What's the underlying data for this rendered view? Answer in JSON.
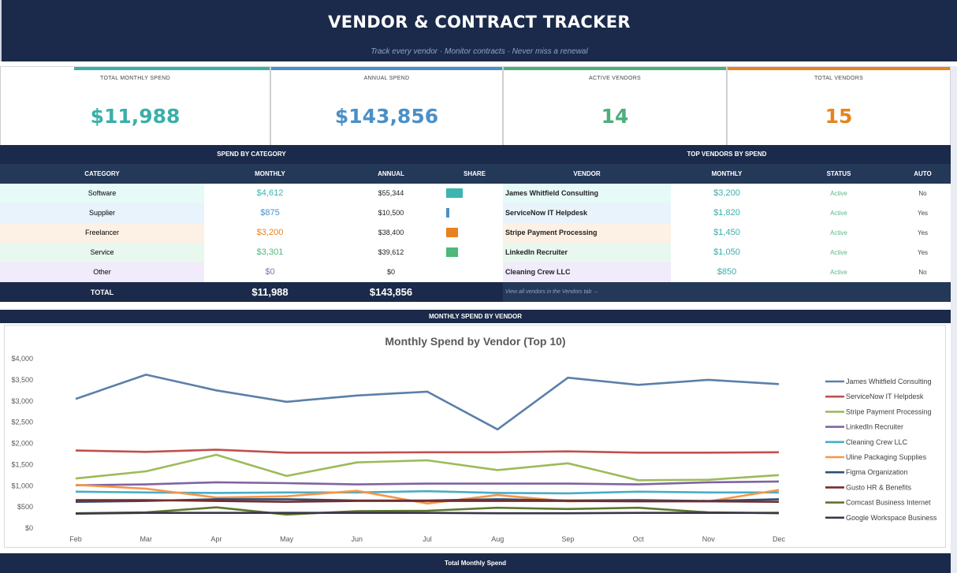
{
  "header": {
    "title": "VENDOR & CONTRACT TRACKER",
    "subtitle": "Track every vendor · Monitor contracts · Never miss a renewal"
  },
  "kpis": [
    {
      "label": "TOTAL MONTHLY SPEND",
      "value": "$11,988",
      "color": "#3aafa9"
    },
    {
      "label": "ANNUAL SPEND",
      "value": "$143,856",
      "color": "#4a90c8"
    },
    {
      "label": "ACTIVE VENDORS",
      "value": "14",
      "color": "#4caf7a"
    },
    {
      "label": "TOTAL VENDORS",
      "value": "15",
      "color": "#e8821e"
    }
  ],
  "category_panel": {
    "title": "SPEND BY CATEGORY",
    "columns": [
      "CATEGORY",
      "MONTHLY",
      "ANNUAL",
      "SHARE"
    ],
    "rows": [
      {
        "category": "Software",
        "monthly": "$4,612",
        "annual": "$55,344",
        "share": 0.385,
        "color": "#3ab5b0",
        "bg": "#e6faf8"
      },
      {
        "category": "Supplier",
        "monthly": "$875",
        "annual": "$10,500",
        "share": 0.073,
        "color": "#4a90c8",
        "bg": "#e8f3fb"
      },
      {
        "category": "Freelancer",
        "monthly": "$3,200",
        "annual": "$38,400",
        "share": 0.267,
        "color": "#e8821e",
        "bg": "#fdf0e4"
      },
      {
        "category": "Service",
        "monthly": "$3,301",
        "annual": "$39,612",
        "share": 0.275,
        "color": "#4cb87a",
        "bg": "#e9f8ef"
      },
      {
        "category": "Other",
        "monthly": "$0",
        "annual": "$0",
        "share": 0,
        "color": "#8a6fb8",
        "bg": "#f1ebfb"
      }
    ],
    "total_label": "TOTAL",
    "total_monthly": "$11,988",
    "total_annual": "$143,856"
  },
  "vendor_panel": {
    "title": "TOP VENDORS BY SPEND",
    "columns": [
      "VENDOR",
      "MONTHLY",
      "STATUS",
      "AUTO"
    ],
    "rows": [
      {
        "vendor": "James Whitfield Consulting",
        "monthly": "$3,200",
        "status": "Active",
        "auto": "No",
        "bg": "#e6faf8"
      },
      {
        "vendor": "ServiceNow IT Helpdesk",
        "monthly": "$1,820",
        "status": "Active",
        "auto": "Yes",
        "bg": "#e8f3fb"
      },
      {
        "vendor": "Stripe Payment Processing",
        "monthly": "$1,450",
        "status": "Active",
        "auto": "Yes",
        "bg": "#fdf0e4"
      },
      {
        "vendor": "LinkedIn Recruiter",
        "monthly": "$1,050",
        "status": "Active",
        "auto": "Yes",
        "bg": "#e9f8ef"
      },
      {
        "vendor": "Cleaning Crew LLC",
        "monthly": "$850",
        "status": "Active",
        "auto": "No",
        "bg": "#f1ebfb"
      }
    ],
    "link_text": "View all vendors in the Vendors tab →"
  },
  "chart_section_title": "MONTHLY SPEND BY VENDOR",
  "footer_title": "Total Monthly Spend",
  "chart_data": {
    "type": "line",
    "title": "Monthly Spend by Vendor (Top 10)",
    "xlabel": "",
    "ylabel": "",
    "x": [
      "Feb",
      "Mar",
      "Apr",
      "May",
      "Jun",
      "Jul",
      "Aug",
      "Sep",
      "Oct",
      "Nov",
      "Dec"
    ],
    "ylim": [
      0,
      4000
    ],
    "yticks": [
      "$0",
      "$500",
      "$1,000",
      "$1,500",
      "$2,000",
      "$2,500",
      "$3,000",
      "$3,500",
      "$4,000"
    ],
    "grid": false,
    "legend": "right",
    "series": [
      {
        "name": "James Whitfield Consulting",
        "color": "#5b80a8",
        "values": [
          3050,
          3620,
          3250,
          2980,
          3130,
          3220,
          2330,
          3550,
          3380,
          3500,
          3400
        ]
      },
      {
        "name": "ServiceNow IT Helpdesk",
        "color": "#c0504d",
        "values": [
          1830,
          1800,
          1850,
          1780,
          1780,
          1790,
          1790,
          1810,
          1780,
          1780,
          1790
        ]
      },
      {
        "name": "Stripe Payment Processing",
        "color": "#9bbb59",
        "values": [
          1170,
          1340,
          1730,
          1230,
          1550,
          1600,
          1370,
          1530,
          1130,
          1140,
          1250
        ]
      },
      {
        "name": "LinkedIn Recruiter",
        "color": "#8064a2",
        "values": [
          1010,
          1030,
          1080,
          1060,
          1030,
          1050,
          1050,
          1050,
          1030,
          1080,
          1100
        ]
      },
      {
        "name": "Cleaning Crew LLC",
        "color": "#4bacc6",
        "values": [
          860,
          840,
          830,
          840,
          840,
          870,
          830,
          820,
          860,
          840,
          840
        ]
      },
      {
        "name": "Uline Packaging Supplies",
        "color": "#f79646",
        "values": [
          1020,
          930,
          720,
          750,
          880,
          580,
          780,
          630,
          650,
          630,
          900
        ]
      },
      {
        "name": "Figma Organization",
        "color": "#2c4d75",
        "values": [
          620,
          640,
          680,
          680,
          650,
          650,
          680,
          650,
          660,
          640,
          680
        ]
      },
      {
        "name": "Gusto HR & Benefits",
        "color": "#772c2a",
        "values": [
          660,
          660,
          640,
          620,
          640,
          640,
          640,
          640,
          630,
          630,
          620
        ]
      },
      {
        "name": "Comcast Business Internet",
        "color": "#5f7530",
        "values": [
          350,
          370,
          490,
          320,
          400,
          410,
          480,
          450,
          480,
          370,
          350
        ]
      },
      {
        "name": "Google Workspace Business",
        "color": "#383848",
        "values": [
          340,
          360,
          360,
          360,
          360,
          360,
          350,
          350,
          360,
          360,
          360
        ]
      }
    ]
  }
}
